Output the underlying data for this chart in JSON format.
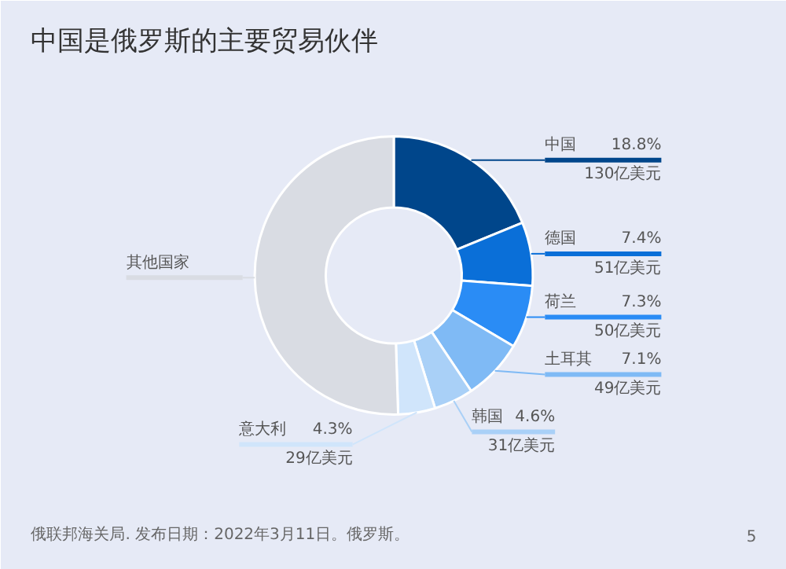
{
  "chart_data": {
    "type": "donut",
    "title": "中国是俄罗斯的主要贸易伙伴",
    "categories": [
      "中国",
      "德国",
      "荷兰",
      "土耳其",
      "韩国",
      "意大利",
      "其他国家"
    ],
    "values": [
      18.8,
      7.4,
      7.3,
      7.1,
      4.6,
      4.3,
      50.5
    ],
    "colors": [
      "#00468b",
      "#0a6fd8",
      "#2a8cf5",
      "#7fbaf5",
      "#a9d0f7",
      "#d0e5fb",
      "#d9dce3"
    ],
    "value_labels": [
      "18.8%\n130亿美元",
      "7.4%\n51亿美元",
      "7.3%\n50亿美元",
      "7.1%\n49亿美元",
      "4.6%\n31亿美元",
      "4.3%\n29亿美元",
      null
    ],
    "annotations": [
      "俄联邦海关局. 发布日期：2022年3月11日。俄罗斯。",
      "5"
    ]
  }
}
